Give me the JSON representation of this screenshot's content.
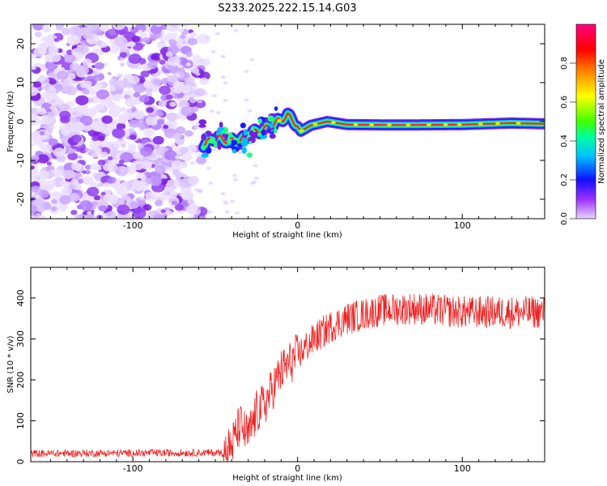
{
  "title": "S233.2025.222.15.14.G03",
  "chart_data": [
    {
      "type": "heatmap",
      "xlabel": "Height of straight line (km)",
      "ylabel": "Frequency (Hz)",
      "xlim": [
        -162,
        150
      ],
      "ylim": [
        -25,
        25
      ],
      "x_ticks": [
        -100,
        0,
        100
      ],
      "y_ticks": [
        -20,
        -10,
        0,
        10,
        20
      ],
      "colorbar": {
        "label": "Normalized spectral amplitude",
        "range": [
          0,
          1
        ],
        "ticks": [
          "0.0",
          "0.2",
          "0.4",
          "0.6",
          "0.8"
        ],
        "colors": [
          "#e0ccff",
          "#9b30ff",
          "#0000ff",
          "#00bfff",
          "#00ff80",
          "#80ff00",
          "#ffff00",
          "#ff8000",
          "#ff0000",
          "#ff0080"
        ]
      },
      "noise_region_x": [
        -162,
        -60
      ],
      "signal_track": [
        {
          "x": -57,
          "y": -6
        },
        {
          "x": -50,
          "y": -4
        },
        {
          "x": -42,
          "y": -5
        },
        {
          "x": -35,
          "y": -5
        },
        {
          "x": -28,
          "y": -3
        },
        {
          "x": -20,
          "y": -2
        },
        {
          "x": -12,
          "y": 0
        },
        {
          "x": -6,
          "y": 1.5
        },
        {
          "x": -2,
          "y": 0
        },
        {
          "x": 2,
          "y": -2.5
        },
        {
          "x": 8,
          "y": -1
        },
        {
          "x": 18,
          "y": 0
        },
        {
          "x": 30,
          "y": -0.8
        },
        {
          "x": 60,
          "y": -0.9
        },
        {
          "x": 100,
          "y": -0.8
        },
        {
          "x": 130,
          "y": -0.4
        },
        {
          "x": 150,
          "y": -0.6
        }
      ]
    },
    {
      "type": "line",
      "xlabel": "Height of straight line (km)",
      "ylabel": "SNR (10 * v/v)",
      "xlim": [
        -162,
        150
      ],
      "ylim": [
        0,
        475
      ],
      "x_ticks": [
        -100,
        0,
        100
      ],
      "y_ticks": [
        0,
        100,
        200,
        300,
        400
      ],
      "series": [
        {
          "name": "SNR",
          "color": "#ee2222",
          "trend": [
            {
              "x": -162,
              "y": 20
            },
            {
              "x": -45,
              "y": 22
            },
            {
              "x": -40,
              "y": 40
            },
            {
              "x": -35,
              "y": 90
            },
            {
              "x": -30,
              "y": 60
            },
            {
              "x": -25,
              "y": 120
            },
            {
              "x": -20,
              "y": 140
            },
            {
              "x": -10,
              "y": 220
            },
            {
              "x": 0,
              "y": 260
            },
            {
              "x": 10,
              "y": 300
            },
            {
              "x": 20,
              "y": 330
            },
            {
              "x": 30,
              "y": 350
            },
            {
              "x": 50,
              "y": 370
            },
            {
              "x": 70,
              "y": 375
            },
            {
              "x": 100,
              "y": 365
            },
            {
              "x": 150,
              "y": 365
            }
          ],
          "spread": 40,
          "n_points": 1100
        }
      ]
    }
  ]
}
